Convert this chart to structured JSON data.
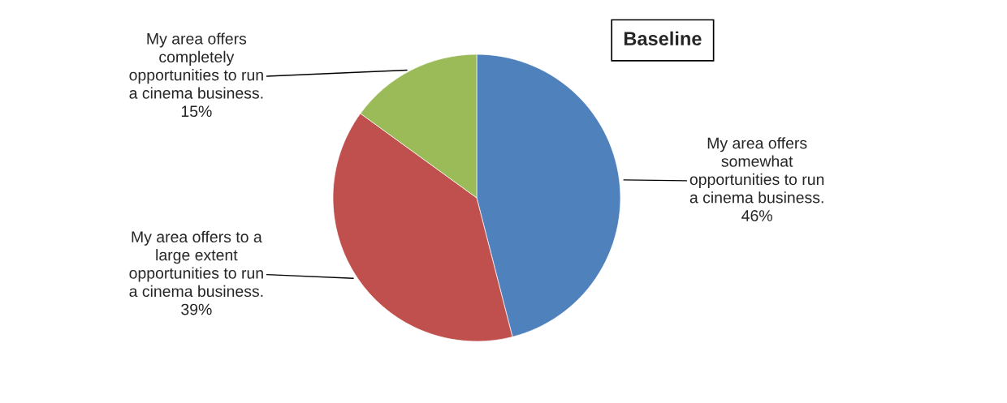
{
  "chart_data": {
    "type": "pie",
    "title": "Baseline",
    "categories": [
      "My area offers somewhat opportunities to run a cinema business.",
      "My area offers to a large extent opportunities to run a cinema business.",
      "My area offers completely opportunities to run a cinema business."
    ],
    "values": [
      46,
      39,
      15
    ],
    "value_labels": [
      "46%",
      "39%",
      "15%"
    ],
    "colors": [
      "#4f81bd",
      "#c0504d",
      "#9bbb59"
    ],
    "legend": false
  }
}
